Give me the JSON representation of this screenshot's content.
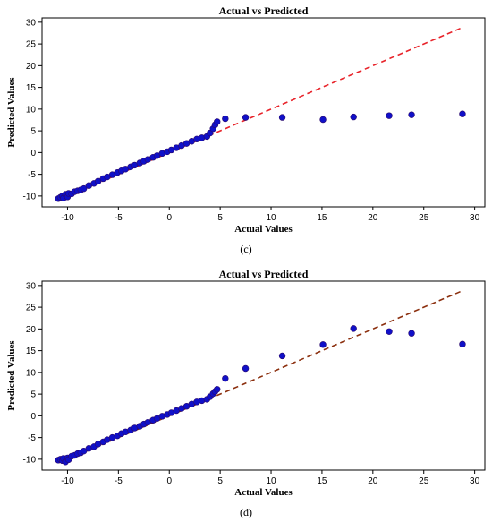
{
  "chart_data": [
    {
      "type": "scatter",
      "title": "Actual vs Predicted",
      "xlabel": "Actual Values",
      "ylabel": "Predicted Values",
      "caption": "(c)",
      "xlim": [
        -12.5,
        31
      ],
      "ylim": [
        -12.5,
        31
      ],
      "xticks": [
        -10,
        -5,
        0,
        5,
        10,
        15,
        20,
        25,
        30
      ],
      "yticks": [
        -10,
        -5,
        0,
        5,
        10,
        15,
        20,
        25,
        30
      ],
      "grid": false,
      "line_color": "#e8232a",
      "point_color": "#1010c8",
      "reference_line": {
        "x": [
          -10.7,
          28.8
        ],
        "y": [
          -10.7,
          28.8
        ]
      },
      "series": [
        {
          "x": [
            -10.9,
            -10.7,
            -10.5,
            -10.4,
            -10.2,
            -10.0,
            -9.9,
            -9.6,
            -9.3,
            -9.0,
            -8.7,
            -8.4,
            -7.9,
            -7.4,
            -7.0,
            -6.5,
            -6.1,
            -5.6,
            -5.1,
            -4.7,
            -4.3,
            -3.8,
            -3.4,
            -2.9,
            -2.5,
            -2.1,
            -1.6,
            -1.2,
            -0.7,
            -0.2,
            0.2,
            0.7,
            1.2,
            1.7,
            2.2,
            2.7,
            3.2,
            3.7,
            4.0,
            4.3,
            4.5,
            4.7,
            5.5,
            7.5,
            11.1,
            15.1,
            18.1,
            21.6,
            23.8,
            28.8
          ],
          "y": [
            -10.6,
            -10.3,
            -10.0,
            -10.5,
            -9.6,
            -10.2,
            -9.4,
            -9.5,
            -9.0,
            -8.8,
            -8.6,
            -8.3,
            -7.6,
            -7.1,
            -6.6,
            -6.0,
            -5.6,
            -5.1,
            -4.6,
            -4.2,
            -3.8,
            -3.3,
            -2.9,
            -2.4,
            -2.0,
            -1.6,
            -1.1,
            -0.7,
            -0.2,
            0.2,
            0.6,
            1.1,
            1.6,
            2.1,
            2.6,
            3.1,
            3.4,
            3.7,
            4.5,
            5.5,
            6.4,
            7.1,
            7.8,
            8.1,
            8.1,
            7.6,
            8.2,
            8.5,
            8.7,
            8.9
          ]
        }
      ]
    },
    {
      "type": "scatter",
      "title": "Actual vs Predicted",
      "xlabel": "Actual Values",
      "ylabel": "Predicted Values",
      "caption": "(d)",
      "xlim": [
        -12.5,
        31
      ],
      "ylim": [
        -12.5,
        31
      ],
      "xticks": [
        -10,
        -5,
        0,
        5,
        10,
        15,
        20,
        25,
        30
      ],
      "yticks": [
        -10,
        -5,
        0,
        5,
        10,
        15,
        20,
        25,
        30
      ],
      "grid": false,
      "line_color": "#8b2f0e",
      "point_color": "#1010c8",
      "reference_line": {
        "x": [
          -10.7,
          28.8
        ],
        "y": [
          -10.7,
          28.8
        ]
      },
      "series": [
        {
          "x": [
            -10.9,
            -10.7,
            -10.5,
            -10.4,
            -10.2,
            -10.0,
            -9.9,
            -9.6,
            -9.3,
            -9.0,
            -8.7,
            -8.4,
            -7.9,
            -7.4,
            -7.0,
            -6.5,
            -6.1,
            -5.6,
            -5.1,
            -4.7,
            -4.3,
            -3.8,
            -3.4,
            -2.9,
            -2.5,
            -2.1,
            -1.6,
            -1.2,
            -0.7,
            -0.2,
            0.2,
            0.7,
            1.2,
            1.7,
            2.2,
            2.7,
            3.2,
            3.7,
            4.0,
            4.3,
            4.5,
            4.7,
            5.5,
            7.5,
            11.1,
            15.1,
            18.1,
            21.6,
            23.8,
            28.8
          ],
          "y": [
            -10.2,
            -10.0,
            -10.3,
            -9.8,
            -10.6,
            -9.7,
            -10.1,
            -9.3,
            -9.1,
            -8.7,
            -8.5,
            -8.1,
            -7.5,
            -7.1,
            -6.5,
            -6.0,
            -5.5,
            -5.0,
            -4.6,
            -4.1,
            -3.7,
            -3.3,
            -2.8,
            -2.4,
            -1.9,
            -1.5,
            -1.0,
            -0.6,
            -0.1,
            0.3,
            0.7,
            1.2,
            1.7,
            2.2,
            2.7,
            3.2,
            3.5,
            3.8,
            4.4,
            5.1,
            5.6,
            6.1,
            8.6,
            10.9,
            13.8,
            16.4,
            20.1,
            19.4,
            19.0,
            16.5
          ]
        }
      ]
    }
  ]
}
